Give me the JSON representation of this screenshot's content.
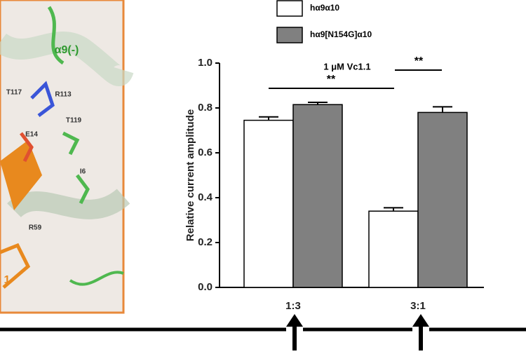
{
  "chart_data": {
    "type": "bar",
    "ylabel": "Relative current amplitude",
    "categories": [
      "1:3",
      "3:1"
    ],
    "series": [
      {
        "name": "hα9α10",
        "color": "#ffffff",
        "values": [
          0.745,
          0.34
        ],
        "errors": [
          0.015,
          0.015
        ]
      },
      {
        "name": "hα9[N154G]α10",
        "color": "#808080",
        "values": [
          0.815,
          0.78
        ],
        "errors": [
          0.01,
          0.025
        ]
      }
    ],
    "ylim": [
      0,
      1
    ],
    "yticks": [
      {
        "value": 0,
        "label": "0.0"
      },
      0.2,
      0.4,
      0.6,
      0.8,
      {
        "value": 1,
        "label": "1.0"
      }
    ],
    "annotation": "1 μM Vc1.1",
    "significance": [
      "**",
      "**"
    ]
  },
  "structure_labels": [
    "α9(-)",
    "T117",
    "R113",
    "T119",
    "E14",
    "I6",
    "R59",
    "1"
  ]
}
